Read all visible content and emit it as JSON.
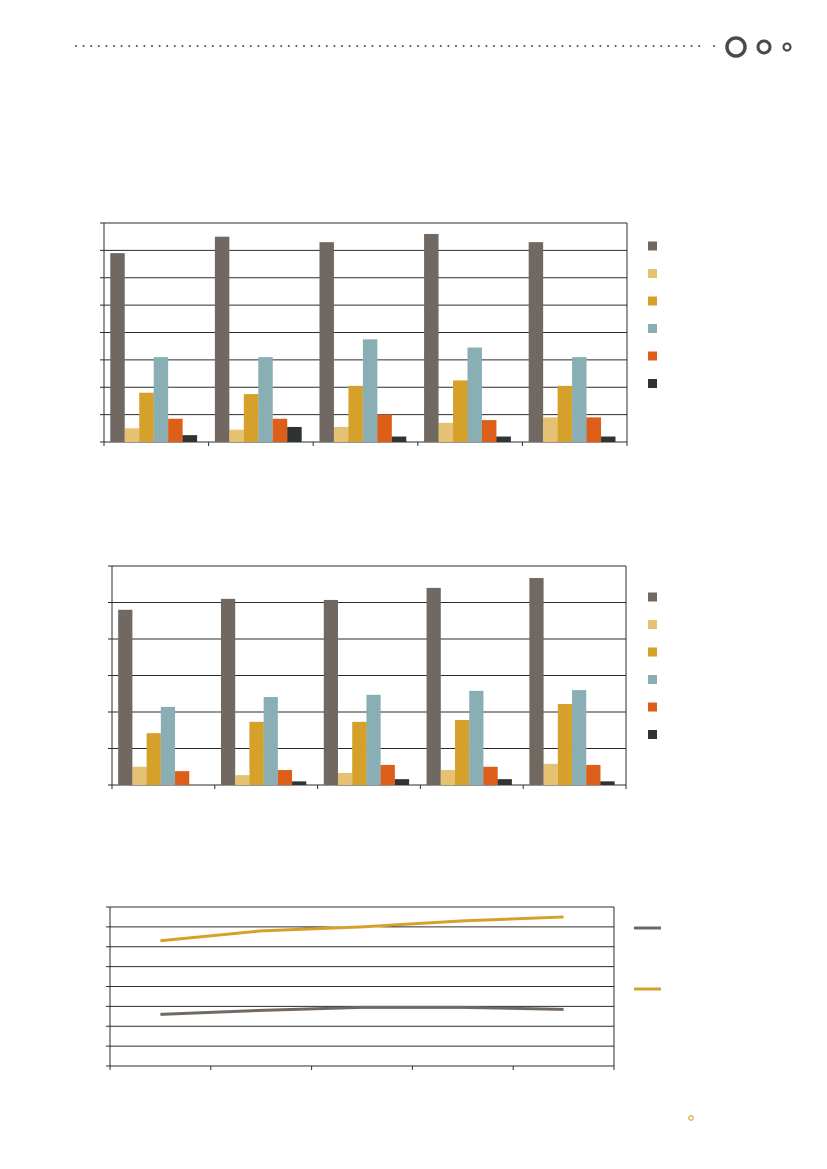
{
  "colors": {
    "series": [
      "#716861",
      "#e5c173",
      "#d6a12a",
      "#89afb5",
      "#dd5e18",
      "#2f3331"
    ],
    "axis": "#2b2b2b",
    "decor": "#4a4a4a",
    "page_marker": "#e0a93a"
  },
  "chart_data": [
    {
      "type": "bar",
      "title": "",
      "xlabel": "",
      "ylabel": "",
      "categories": [
        "",
        "",
        "",
        "",
        ""
      ],
      "ylim": [
        0,
        8
      ],
      "grid": true,
      "legend": "right",
      "series": [
        {
          "name": "",
          "values": [
            6.9,
            7.5,
            7.3,
            7.6,
            7.3
          ]
        },
        {
          "name": "",
          "values": [
            0.5,
            0.45,
            0.55,
            0.7,
            0.9
          ]
        },
        {
          "name": "",
          "values": [
            1.8,
            1.75,
            2.05,
            2.25,
            2.05
          ]
        },
        {
          "name": "",
          "values": [
            3.1,
            3.1,
            3.75,
            3.45,
            3.1
          ]
        },
        {
          "name": "",
          "values": [
            0.85,
            0.85,
            1.0,
            0.8,
            0.9
          ]
        },
        {
          "name": "",
          "values": [
            0.25,
            0.55,
            0.2,
            0.2,
            0.2
          ]
        }
      ]
    },
    {
      "type": "bar",
      "title": "",
      "xlabel": "",
      "ylabel": "",
      "categories": [
        "",
        "",
        "",
        "",
        ""
      ],
      "ylim": [
        0,
        6
      ],
      "grid": true,
      "legend": "right",
      "series": [
        {
          "name": "",
          "values": [
            4.8,
            5.1,
            5.07,
            5.4,
            5.67
          ]
        },
        {
          "name": "",
          "values": [
            0.5,
            0.27,
            0.33,
            0.41,
            0.58
          ]
        },
        {
          "name": "",
          "values": [
            1.42,
            1.73,
            1.73,
            1.78,
            2.22
          ]
        },
        {
          "name": "",
          "values": [
            2.14,
            2.41,
            2.47,
            2.58,
            2.6
          ]
        },
        {
          "name": "",
          "values": [
            0.38,
            0.41,
            0.55,
            0.5,
            0.55
          ]
        },
        {
          "name": "",
          "values": [
            0,
            0.1,
            0.16,
            0.16,
            0.1
          ]
        }
      ]
    },
    {
      "type": "line",
      "title": "",
      "xlabel": "",
      "ylabel": "",
      "categories": [
        "",
        "",
        "",
        "",
        ""
      ],
      "ylim": [
        0,
        8
      ],
      "grid": true,
      "legend": "right",
      "series": [
        {
          "name": "",
          "values": [
            2.6,
            2.8,
            2.95,
            2.95,
            2.85
          ]
        },
        {
          "name": "",
          "values": [
            6.3,
            6.8,
            7.0,
            7.3,
            7.5
          ]
        }
      ]
    }
  ]
}
